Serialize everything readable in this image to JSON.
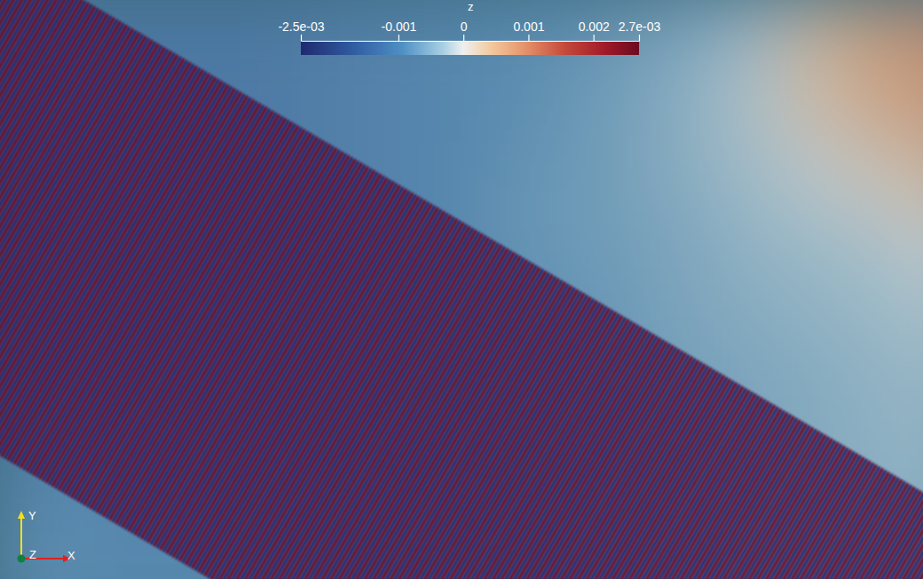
{
  "chart_data": {
    "type": "heatmap",
    "cells": [
      [
        -0.0013,
        -0.0013,
        -0.0013,
        -0.0013,
        -0.0012,
        -0.0011,
        -0.001,
        -0.0009,
        -0.0008,
        -0.0006,
        -0.0003,
        0.0004,
        0.0008,
        0.0009
      ],
      [
        -0.0013,
        -0.0013,
        -0.0013,
        -0.0013,
        -0.0012,
        -0.0011,
        -0.001,
        -0.0009,
        -0.0007,
        -0.0005,
        -0.0002,
        0.0003,
        0.0007,
        0.0008
      ],
      [
        -0.0013,
        -0.0013,
        -0.0013,
        -0.0013,
        -0.0012,
        -0.0011,
        -0.001,
        -0.0008,
        -0.0007,
        -0.0005,
        -0.0003,
        -0.0001,
        0.0002,
        0.0005
      ],
      [
        -0.0013,
        -0.0013,
        -0.0013,
        -0.0013,
        -0.0012,
        -0.0011,
        -0.001,
        -0.0008,
        -0.0007,
        -0.0006,
        -0.0004,
        -0.0003,
        -0.0002,
        0.0
      ],
      [
        -0.0013,
        -0.0013,
        -0.0013,
        -0.0012,
        -0.0012,
        -0.0011,
        -0.001,
        -0.0009,
        -0.0008,
        -0.0006,
        -0.0005,
        -0.0004,
        -0.0003,
        -0.0002
      ],
      [
        -0.0012,
        -0.0012,
        -0.0012,
        -0.0012,
        -0.0011,
        -0.0011,
        -0.001,
        -0.0009,
        -0.0008,
        -0.0007,
        -0.0006,
        -0.0005,
        -0.0004,
        -0.0003
      ],
      [
        -0.0011,
        -0.0011,
        -0.0011,
        -0.0011,
        -0.0011,
        -0.001,
        -0.001,
        -0.0009,
        -0.0008,
        -0.0007,
        -0.0006,
        -0.0005,
        -0.0004,
        -0.0004
      ],
      [
        -0.0009,
        -0.001,
        -0.001,
        -0.001,
        -0.001,
        -0.001,
        -0.0009,
        -0.0009,
        -0.0008,
        -0.0007,
        -0.0006,
        -0.0005,
        -0.0005,
        -0.0005
      ],
      [
        -0.0009,
        -0.001,
        -0.001,
        -0.001,
        -0.001,
        -0.001,
        -0.0009,
        -0.0009,
        -0.0008,
        -0.0007,
        -0.0006,
        -0.0005,
        -0.0005,
        -0.0005
      ]
    ],
    "stripe_values": [
      0.0027,
      -0.0025
    ],
    "colorbar": {
      "title": "z",
      "range": [
        -0.0025,
        0.0027
      ],
      "ticks": [
        {
          "value": -0.0025,
          "label": "-2.5e-03"
        },
        -0.001,
        0,
        0.001,
        0.002,
        {
          "value": 0.0027,
          "label": "2.7e-03"
        }
      ]
    },
    "axes_triad": {
      "labels": [
        "X",
        "Y",
        "Z"
      ]
    }
  }
}
